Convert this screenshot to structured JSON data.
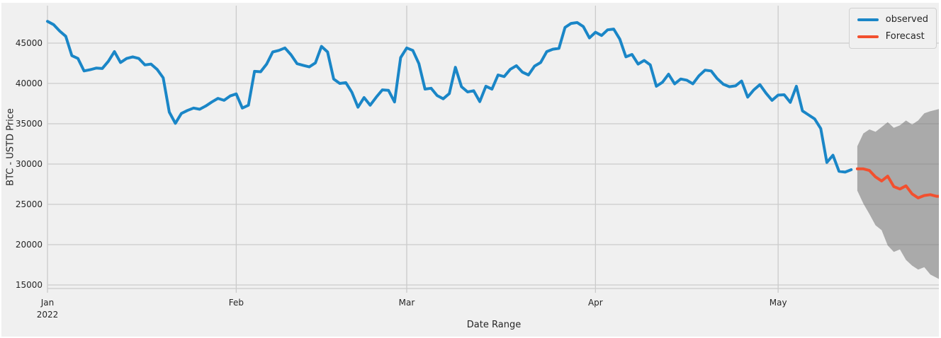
{
  "figure": {
    "page_background": "#ffffff",
    "plot_background": "#f0f0f0",
    "grid_color": "#cbcbcb",
    "tick_text_color": "#262626"
  },
  "chart_data": {
    "type": "line",
    "title": "",
    "xlabel": "Date Range",
    "ylabel": "BTC - USTD Price",
    "grid": true,
    "legend_position": "upper right",
    "legend": [
      {
        "label": "observed",
        "color": "#1a86c7"
      },
      {
        "label": "Forecast",
        "color": "#f2502f"
      }
    ],
    "x_start": "Jan 2022",
    "x_freq": "daily",
    "xlim_days": [
      0,
      146.4
    ],
    "ylim": [
      14560,
      49650
    ],
    "y_ticks": [
      15000,
      20000,
      25000,
      30000,
      35000,
      40000,
      45000
    ],
    "x_ticks": [
      {
        "label": "Jan",
        "sublabel": "2022",
        "day": 0
      },
      {
        "label": "Feb",
        "day": 31
      },
      {
        "label": "Mar",
        "day": 59
      },
      {
        "label": "Apr",
        "day": 90
      },
      {
        "label": "May",
        "day": 120
      }
    ],
    "series": [
      {
        "name": "observed",
        "color": "#1a86c7",
        "line_width": 4,
        "start_day": 0,
        "values": [
          47700,
          47300,
          46500,
          45850,
          43450,
          43100,
          41550,
          41700,
          41900,
          41850,
          42750,
          43950,
          42600,
          43100,
          43300,
          43100,
          42300,
          42400,
          41750,
          40700,
          36450,
          35050,
          36280,
          36650,
          36950,
          36800,
          37200,
          37700,
          38150,
          37900,
          38450,
          38700,
          36950,
          37300,
          41500,
          41450,
          42400,
          43900,
          44100,
          44400,
          43550,
          42450,
          42250,
          42050,
          42550,
          44600,
          43900,
          40550,
          40000,
          40100,
          38900,
          37050,
          38250,
          37300,
          38300,
          39200,
          39150,
          37700,
          43200,
          44400,
          44100,
          42450,
          39300,
          39400,
          38500,
          38100,
          38750,
          42000,
          39600,
          38950,
          39100,
          37750,
          39650,
          39300,
          41050,
          40850,
          41750,
          42200,
          41400,
          41050,
          42150,
          42600,
          43950,
          44250,
          44350,
          46950,
          47450,
          47550,
          47050,
          45650,
          46350,
          45950,
          46650,
          46750,
          45500,
          43300,
          43600,
          42400,
          42850,
          42300,
          39650,
          40150,
          41150,
          39950,
          40550,
          40400,
          39950,
          40950,
          41650,
          41550,
          40600,
          39900,
          39600,
          39700,
          40300,
          38300,
          39200,
          39850,
          38800,
          37900,
          38550,
          38600,
          37650,
          39650,
          36600,
          36100,
          35600,
          34400,
          30200,
          31100,
          29100,
          29000,
          29300
        ]
      },
      {
        "name": "Forecast",
        "color": "#f2502f",
        "line_width": 4,
        "start_day": 133,
        "values": [
          29400,
          29400,
          29200,
          28400,
          27900,
          28500,
          27200,
          26900,
          27300,
          26300,
          25800,
          26100,
          26200,
          26000,
          26000
        ]
      }
    ],
    "confidence_band": {
      "start_day": 133,
      "color": "#7b7b7b",
      "opacity": 0.6,
      "upper": [
        32200,
        33800,
        34300,
        34000,
        34600,
        35200,
        34500,
        34800,
        35400,
        34900,
        35400,
        36300,
        36550,
        36750,
        36950
      ],
      "lower": [
        26700,
        25100,
        23800,
        22400,
        21800,
        19900,
        19100,
        19400,
        18100,
        17400,
        16900,
        17200,
        16300,
        15900,
        15500
      ]
    }
  }
}
